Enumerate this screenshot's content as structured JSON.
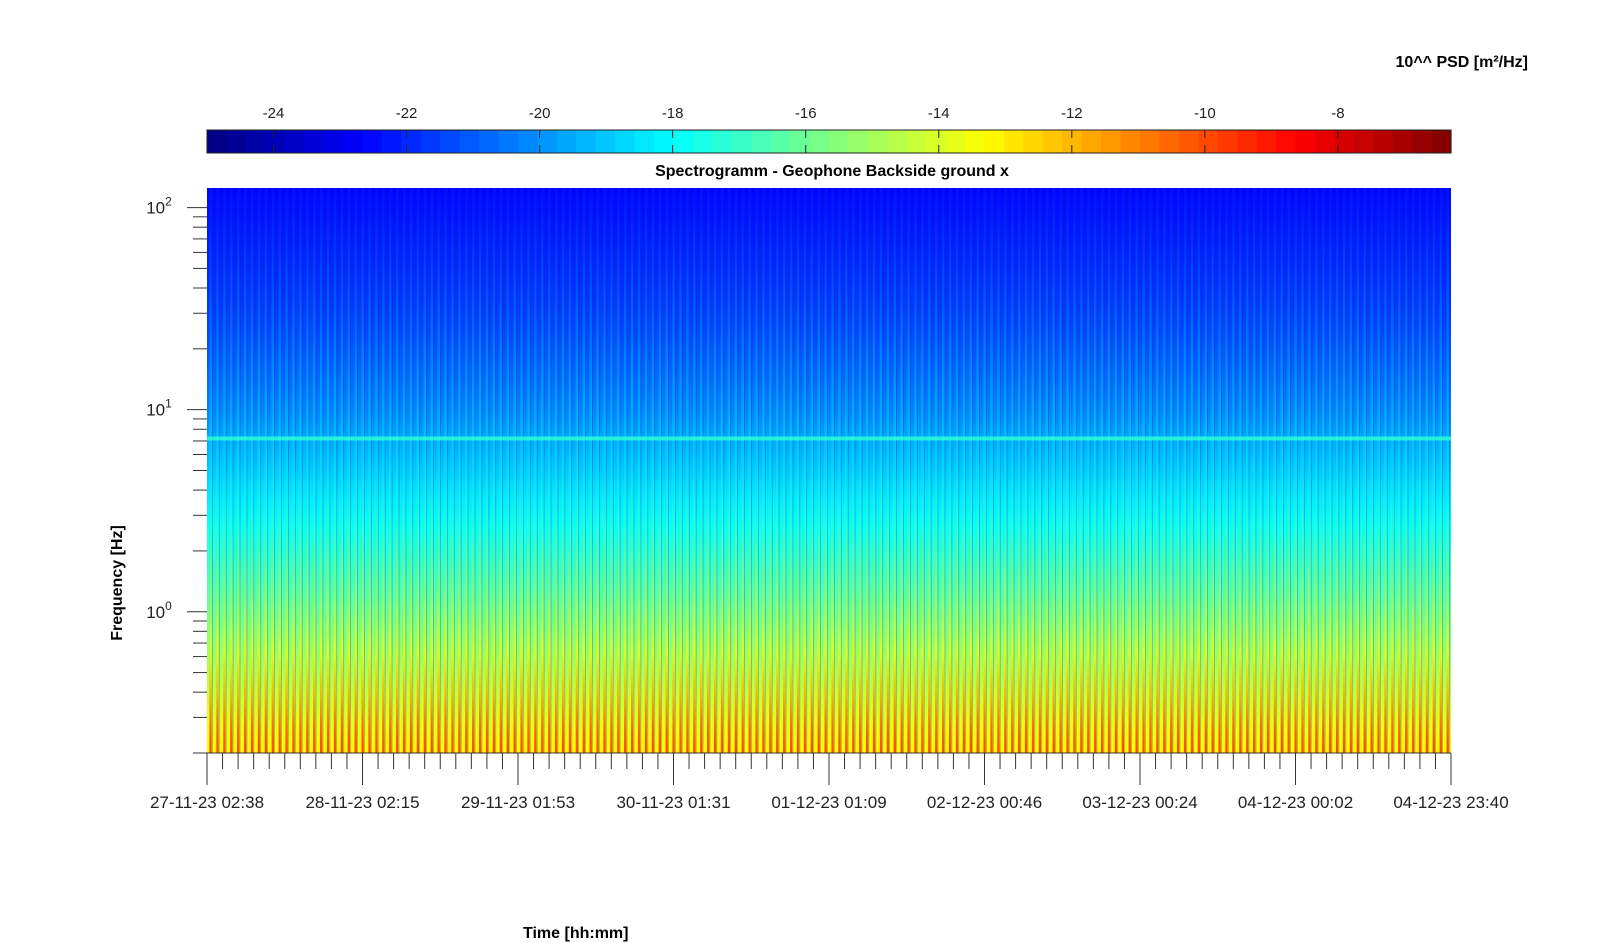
{
  "chart_data": {
    "type": "heatmap",
    "title": "Spectrogramm - Geophone Backside ground x",
    "xlabel": "Time [hh:mm]",
    "ylabel": "Frequency [Hz]",
    "y_scale": "log",
    "ylim": [
      0.2,
      125
    ],
    "y_ticks": [
      1,
      10,
      100
    ],
    "y_tick_labels": [
      {
        "base": "10",
        "exp": "0"
      },
      {
        "base": "10",
        "exp": "1"
      },
      {
        "base": "10",
        "exp": "2"
      }
    ],
    "x_tick_labels": [
      "27-11-23 02:38",
      "28-11-23 02:15",
      "29-11-23 01:53",
      "30-11-23 01:31",
      "01-12-23 01:09",
      "02-12-23 00:46",
      "03-12-23 00:24",
      "04-12-23 00:02",
      "04-12-23 23:40"
    ],
    "colorbar": {
      "label": "10^^ PSD [m²/Hz]",
      "placement": "top",
      "colormap": "jet",
      "range": [
        -25.0,
        -6.3
      ],
      "ticks": [
        -24,
        -22,
        -20,
        -18,
        -16,
        -14,
        -12,
        -10,
        -8
      ],
      "tick_labels": [
        "-24",
        "-22",
        "-20",
        "-18",
        "-16",
        "-14",
        "-12",
        "-10",
        "-8"
      ]
    },
    "grid": false,
    "features": {
      "periodic_columns": 180,
      "line_frequency_hz": 7.2,
      "low_freq_max_log_psd": -8.5,
      "high_freq_min_log_psd": -22.5
    }
  }
}
